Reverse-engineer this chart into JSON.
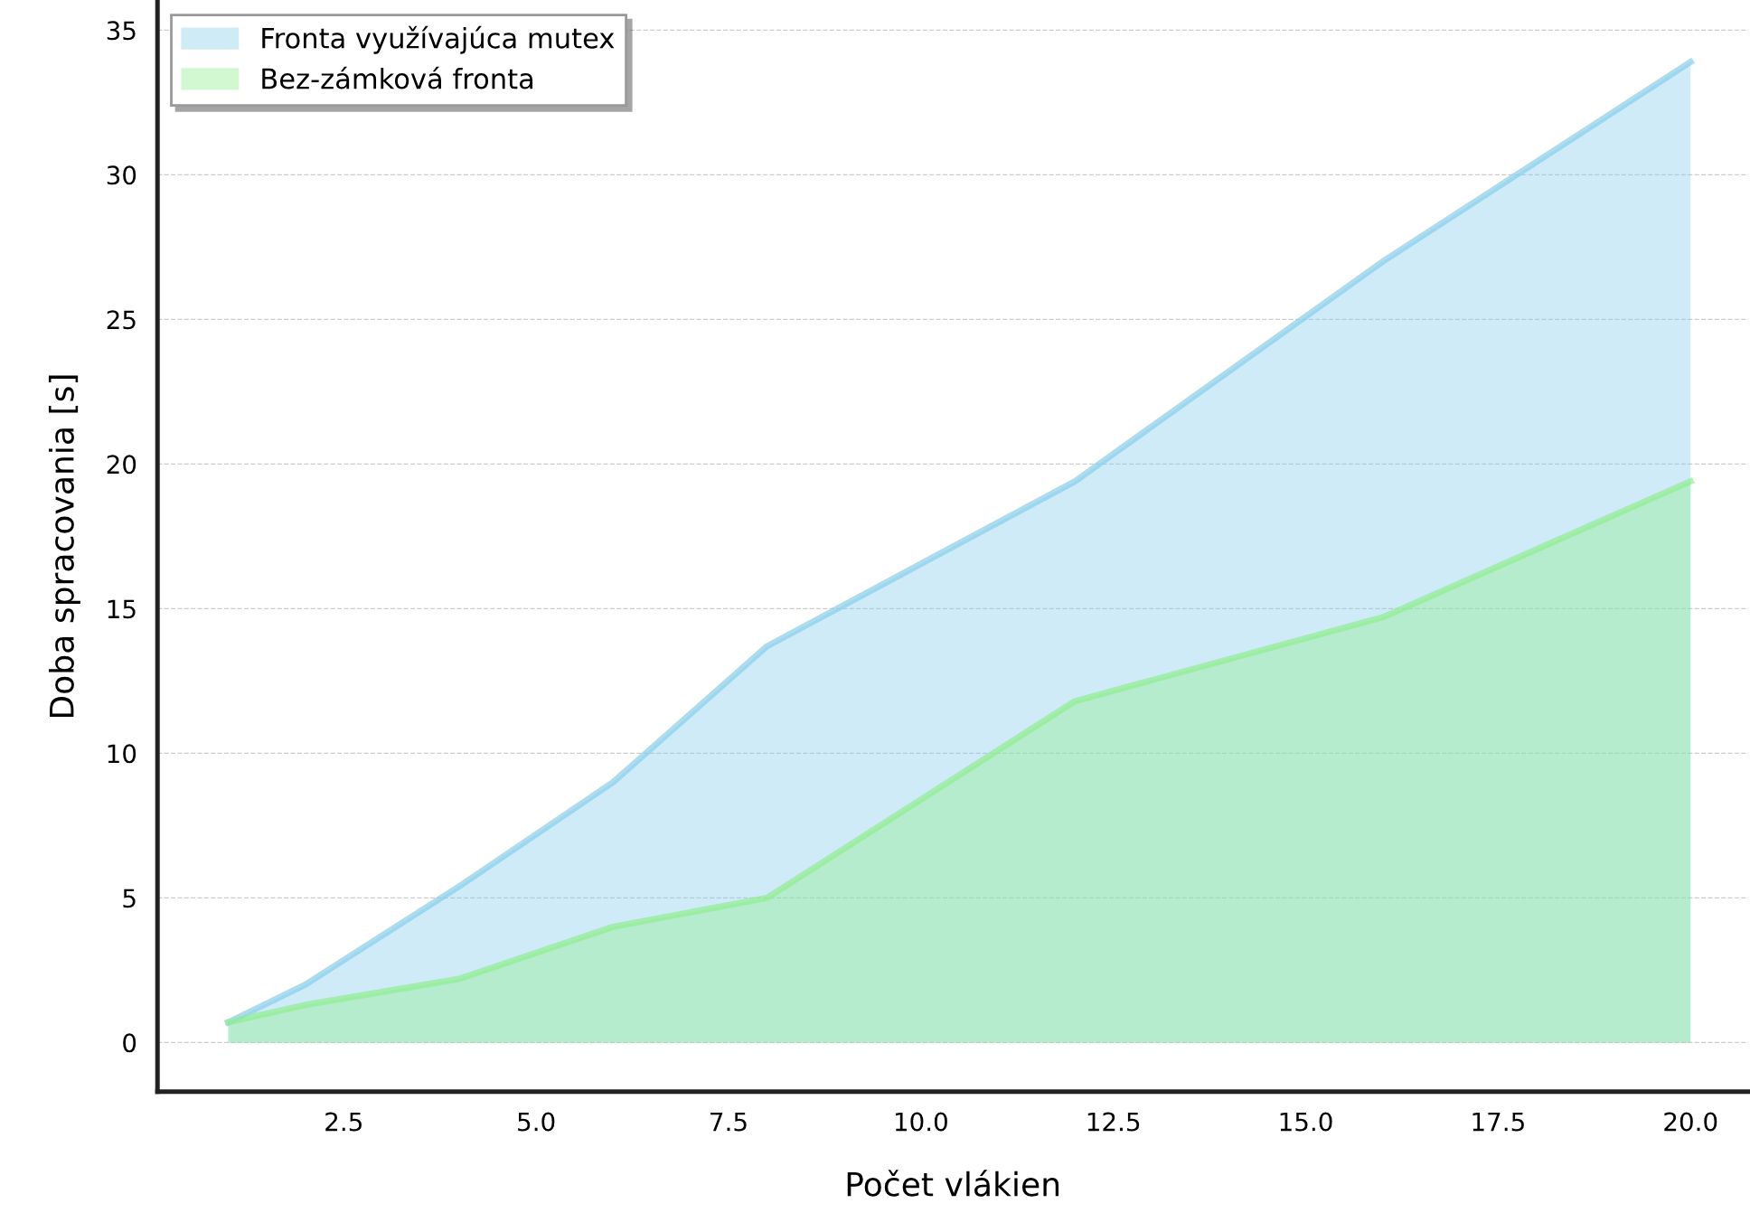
{
  "chart_data": {
    "type": "area",
    "xlabel": "Počet vlákien",
    "ylabel": "Doba spracovania [s]",
    "x": [
      1,
      2,
      4,
      6,
      8,
      12,
      16,
      20
    ],
    "series": [
      {
        "name": "Fronta využívajúca mutex",
        "color": "#87ceeb",
        "values": [
          0.7,
          2.0,
          5.4,
          9.0,
          13.7,
          19.4,
          27.0,
          33.9
        ]
      },
      {
        "name": "Bez-zámková fronta",
        "color": "#90ee90",
        "values": [
          0.7,
          1.3,
          2.2,
          4.0,
          5.0,
          11.8,
          14.7,
          19.4
        ]
      }
    ],
    "xlim": [
      0.08,
      20.75
    ],
    "xticks": [
      2.5,
      {
        "value": 5,
        "label": "5.0"
      },
      7.5,
      {
        "value": 10,
        "label": "10.0"
      },
      12.5,
      {
        "value": 15,
        "label": "15.0"
      },
      17.5,
      {
        "value": 20,
        "label": "20.0"
      }
    ],
    "ylim": [
      -1.7,
      36
    ],
    "yticks": [
      0,
      5,
      10,
      15,
      20,
      25,
      30,
      35
    ],
    "grid": "y",
    "legend": "top left"
  }
}
